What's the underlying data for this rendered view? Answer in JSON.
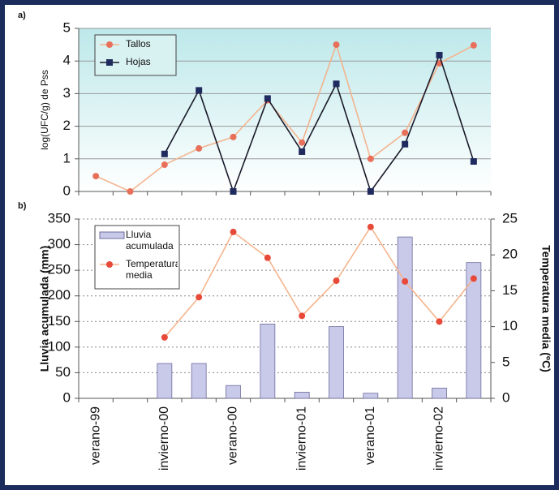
{
  "chart_data": [
    {
      "type": "line",
      "panel_label": "a)",
      "y_label": "log(UFC/g) de Pss",
      "ylim": [
        0,
        5
      ],
      "yticks": [
        0,
        1,
        2,
        3,
        4,
        5
      ],
      "grid": true,
      "legend": "top-left",
      "series": [
        {
          "name": "Tallos",
          "color": "#f2b48e",
          "marker_color": "#e8705a",
          "marker": "circle",
          "values": [
            0.47,
            0,
            0.82,
            1.32,
            1.67,
            2.8,
            1.5,
            4.5,
            1.0,
            1.8,
            3.93,
            4.48
          ]
        },
        {
          "name": "Hojas",
          "color": "#1a1a2a",
          "marker_color": "#1f2a5e",
          "marker": "square",
          "values": [
            null,
            null,
            1.15,
            3.1,
            0,
            2.85,
            1.22,
            3.3,
            0,
            1.45,
            4.18,
            0.92
          ]
        }
      ]
    },
    {
      "type": "bar",
      "panel_label": "b)",
      "y_label": "Lluvia acumulada (mm)",
      "y2_label": "Temperatura media (ºC)",
      "categories": [
        "verano-99",
        null,
        "invierno-00",
        null,
        "verano-00",
        null,
        "invierno-01",
        null,
        "verano-01",
        null,
        "invierno-02",
        null
      ],
      "ylim": [
        0,
        350
      ],
      "yticks": [
        0,
        50,
        100,
        150,
        200,
        250,
        300,
        350
      ],
      "y2lim": [
        0,
        25
      ],
      "y2ticks": [
        0,
        5,
        10,
        15,
        20,
        25
      ],
      "grid": true,
      "legend": "top-left",
      "series": [
        {
          "name": "Lluvia acumulada",
          "type": "bar",
          "color": "#c9c9ea",
          "values": [
            null,
            null,
            68,
            68,
            25,
            145,
            12,
            140,
            10,
            315,
            20,
            265
          ]
        },
        {
          "name": "Temperatura media",
          "type": "line",
          "axis": "y2",
          "color": "#f5b48c",
          "marker_color": "#e84a3a",
          "marker": "circle",
          "values": [
            null,
            null,
            8.5,
            14.1,
            23.2,
            19.6,
            11.5,
            16.4,
            23.9,
            16.3,
            10.7,
            16.7
          ]
        }
      ]
    }
  ]
}
